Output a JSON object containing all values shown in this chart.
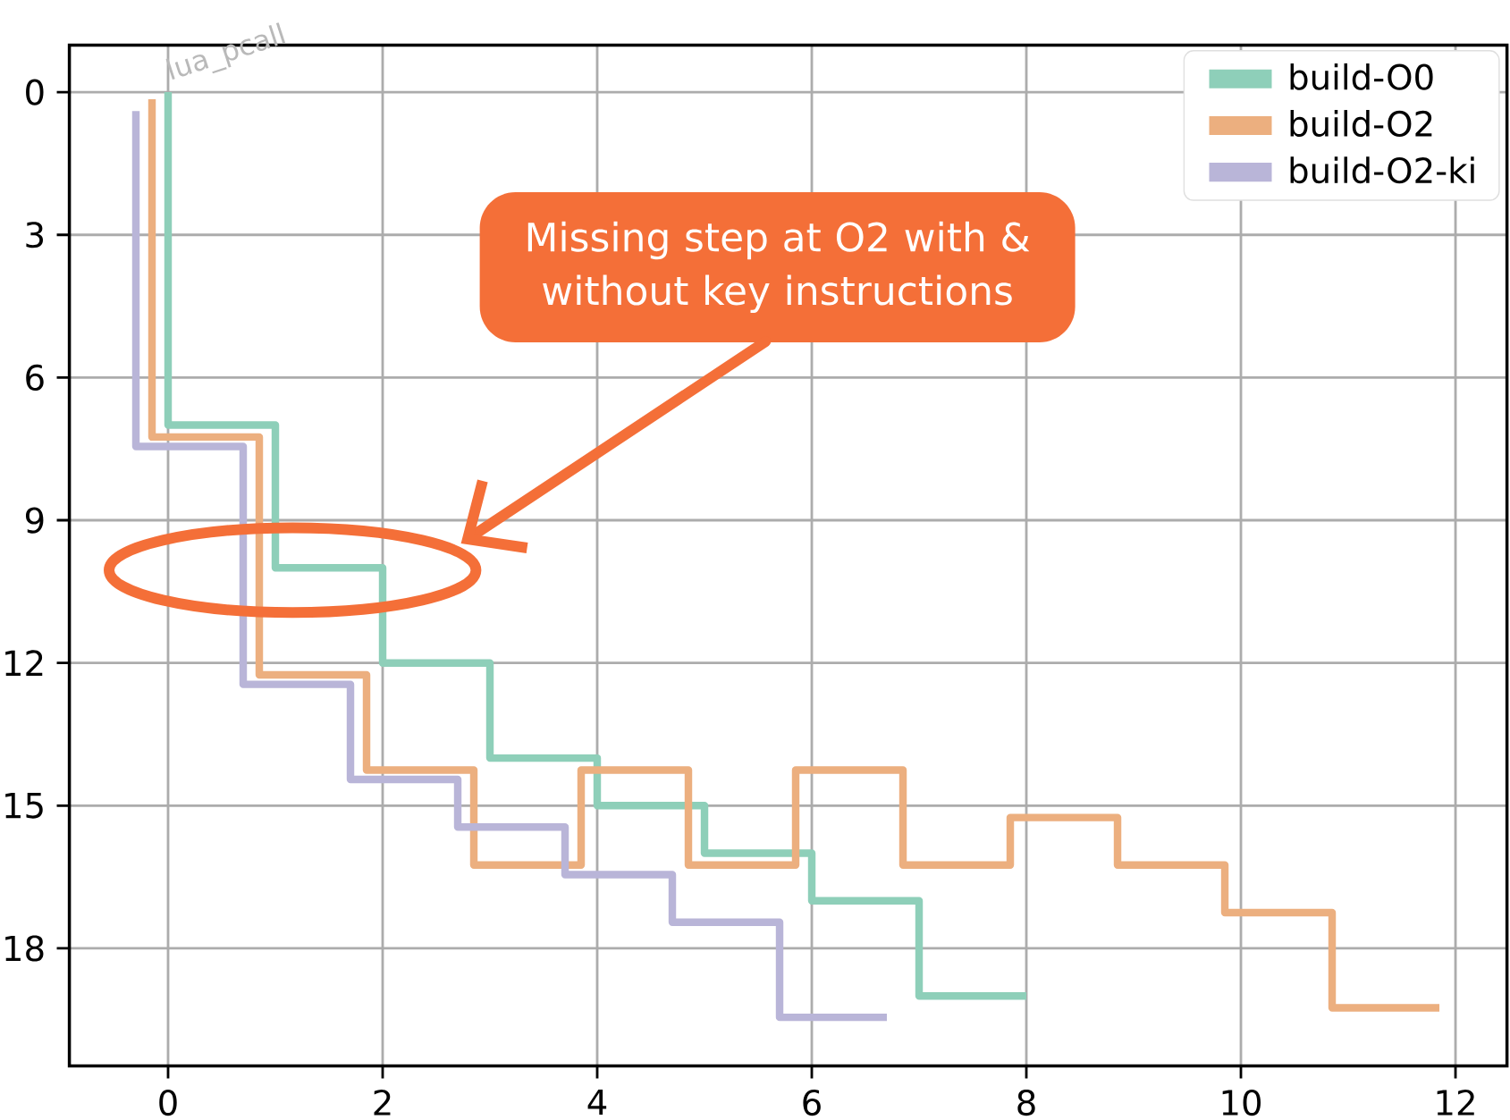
{
  "chart_data": {
    "type": "step",
    "series": [
      {
        "name": "build-O0",
        "color": "#8ecfb9",
        "x": [
          0,
          0,
          1,
          2,
          3,
          4,
          5,
          6,
          7,
          8
        ],
        "values": [
          0,
          7,
          10,
          12,
          14,
          15,
          16,
          17,
          19,
          19
        ]
      },
      {
        "name": "build-O2",
        "color": "#ecaf7f",
        "x": [
          -0.15,
          -0.15,
          0.85,
          1.85,
          2.85,
          3.85,
          4.85,
          5.85,
          6.85,
          7.85,
          8.85,
          9.85,
          10.85,
          11.85
        ],
        "values": [
          0.15,
          7.25,
          12.25,
          14.25,
          16.25,
          14.25,
          16.25,
          14.25,
          16.25,
          15.25,
          16.25,
          17.25,
          19.25,
          19.25
        ]
      },
      {
        "name": "build-O2-ki",
        "color": "#b9b5d8",
        "x": [
          -0.3,
          -0.3,
          0.7,
          1.7,
          2.7,
          3.7,
          4.7,
          5.7,
          6.7
        ],
        "values": [
          0.4,
          7.45,
          12.45,
          14.45,
          15.45,
          16.45,
          17.45,
          19.45,
          19.45
        ]
      }
    ],
    "xlim": [
      -0.92,
      12.48
    ],
    "ylim": [
      20.47,
      -0.99
    ],
    "xticks": [
      0,
      2,
      4,
      6,
      8,
      10,
      12
    ],
    "yticks": [
      0,
      3,
      6,
      9,
      12,
      15,
      18
    ],
    "grid": true,
    "legend": "top right",
    "annotations": [
      "Missing step at O2 with & without key instructions",
      "lua_pcall"
    ]
  }
}
